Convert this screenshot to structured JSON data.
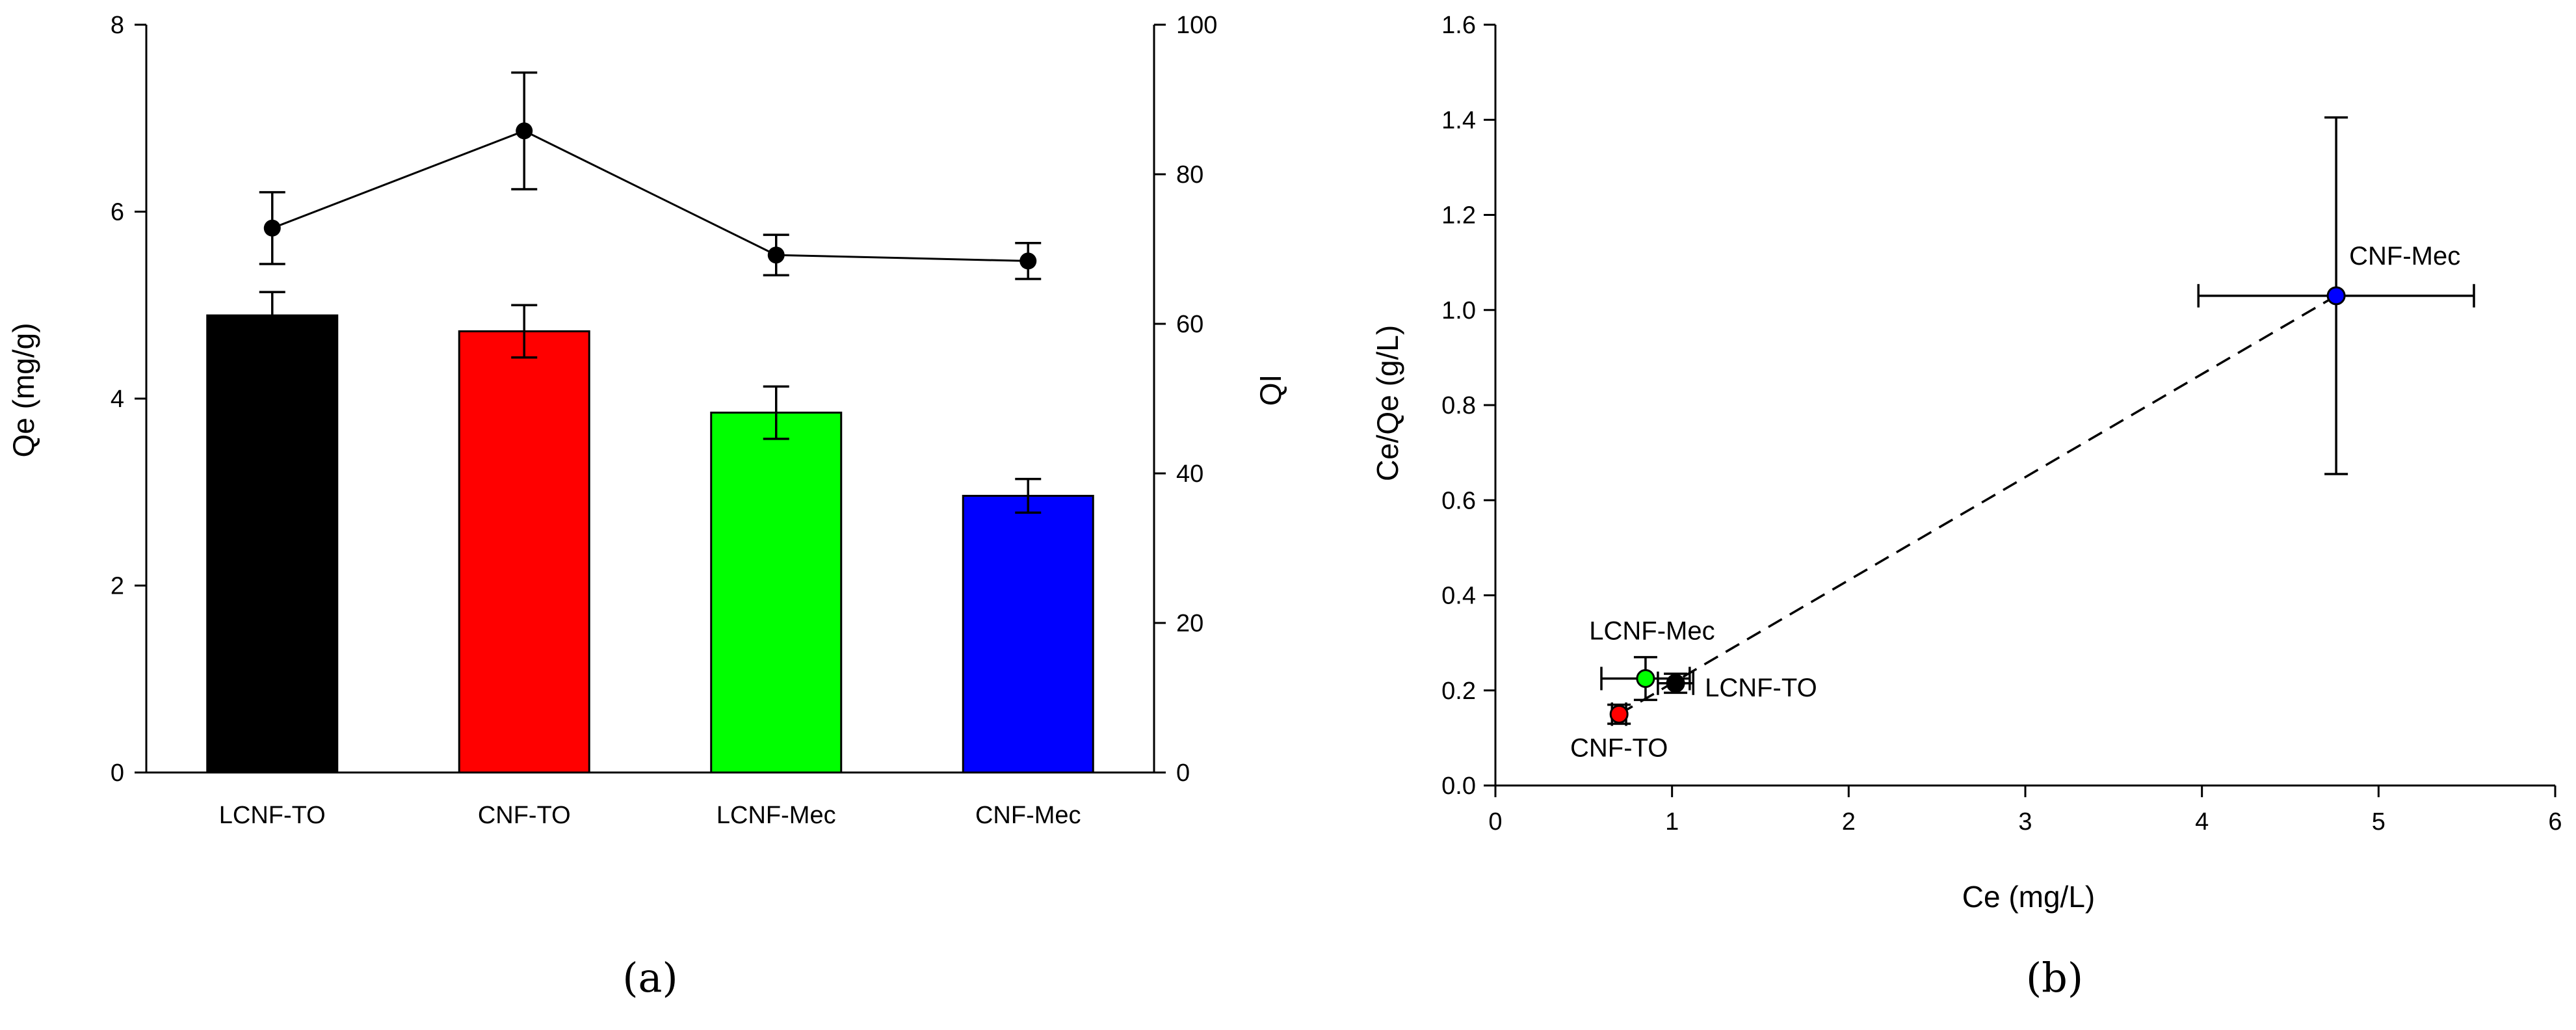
{
  "chart_data": [
    {
      "panel_label": "(a)",
      "type": "bar",
      "categories": [
        "LCNF-TO",
        "CNF-TO",
        "LCNF-Mec",
        "CNF-Mec"
      ],
      "bar_colors": [
        "#000000",
        "#ff0000",
        "#00ff00",
        "#0000ff"
      ],
      "series": [
        {
          "name": "Qe",
          "type": "bar",
          "axis": "left",
          "values": [
            4.89,
            4.72,
            3.85,
            2.96
          ],
          "errors": [
            0.25,
            0.28,
            0.28,
            0.18
          ]
        },
        {
          "name": "QI",
          "type": "line",
          "axis": "right",
          "values": [
            72.8,
            85.8,
            69.2,
            68.4
          ],
          "errors": [
            4.8,
            7.8,
            2.7,
            2.4
          ]
        }
      ],
      "ylabel": "Qe (mg/g)",
      "ylim": [
        0,
        8
      ],
      "yticks": [
        "0",
        "2",
        "4",
        "6",
        "8"
      ],
      "y2label": "QI",
      "y2lim": [
        0,
        100
      ],
      "y2ticks": [
        "0",
        "20",
        "40",
        "60",
        "80",
        "100"
      ]
    },
    {
      "panel_label": "(b)",
      "type": "scatter",
      "xlabel": "Ce (mg/L)",
      "ylabel": "Ce/Qe (g/L)",
      "xlim": [
        0,
        6
      ],
      "ylim": [
        0,
        1.6
      ],
      "xticks": [
        "0",
        "1",
        "2",
        "3",
        "4",
        "5",
        "6"
      ],
      "yticks": [
        "0.0",
        "0.2",
        "0.4",
        "0.6",
        "0.8",
        "1.0",
        "1.2",
        "1.4",
        "1.6"
      ],
      "points": [
        {
          "label": "LCNF-TO",
          "x": 1.02,
          "y": 0.215,
          "xerr": 0.1,
          "yerr": 0.02,
          "color": "#000000"
        },
        {
          "label": "CNF-TO",
          "x": 0.7,
          "y": 0.15,
          "xerr": 0.04,
          "yerr": 0.02,
          "color": "#ff0000"
        },
        {
          "label": "LCNF-Mec",
          "x": 0.85,
          "y": 0.225,
          "xerr": 0.25,
          "yerr": 0.045,
          "color": "#00ff00"
        },
        {
          "label": "CNF-Mec",
          "x": 4.76,
          "y": 1.03,
          "xerr": 0.78,
          "yerr": 0.375,
          "color": "#0000ff"
        }
      ],
      "fit_line": {
        "style": "dashed",
        "from": [
          0.7,
          0.15
        ],
        "to": [
          4.76,
          1.03
        ]
      }
    }
  ]
}
